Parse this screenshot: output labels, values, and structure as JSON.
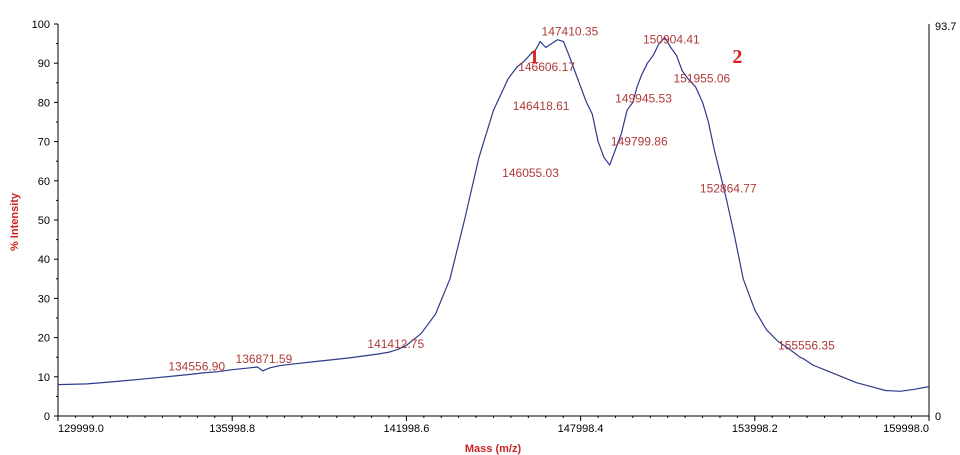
{
  "chart_data": {
    "type": "line",
    "xlabel": "Mass (m/z)",
    "ylabel": "% Intensity",
    "xlim": [
      129999.0,
      159998.0
    ],
    "ylim": [
      0,
      100
    ],
    "x_tick_labels": [
      "129999.0",
      "135998.8",
      "141998.6",
      "147998.4",
      "153998.2",
      "159998.0"
    ],
    "x_tick_values": [
      129999.0,
      135998.8,
      141998.6,
      147998.4,
      153998.2,
      159998.0
    ],
    "y_tick_labels": [
      "0",
      "10",
      "20",
      "30",
      "40",
      "50",
      "60",
      "70",
      "80",
      "90",
      "100"
    ],
    "y_tick_values": [
      0,
      10,
      20,
      30,
      40,
      50,
      60,
      70,
      80,
      90,
      100
    ],
    "right_axis_labels": {
      "top": "93.7",
      "bottom": "0"
    },
    "peak_markers": [
      {
        "text": "1",
        "x": 146400,
        "y": 90
      },
      {
        "text": "2",
        "x": 153400,
        "y": 90
      }
    ],
    "series_color": "#2e3a8c",
    "series": [
      {
        "x": [
          129999,
          131000,
          132000,
          133000,
          134000,
          134557,
          135000,
          135500,
          136000,
          136500,
          136871,
          137050,
          137300,
          137600,
          138000,
          139000,
          140000,
          141000,
          141413,
          141700,
          142000,
          142500,
          143000,
          143500,
          144000,
          144500,
          145000,
          145500,
          145800,
          146055,
          146300,
          146418,
          146607,
          146800,
          147000,
          147200,
          147410,
          147600,
          147800,
          148000,
          148200,
          148400,
          148600,
          148800,
          149000,
          149200,
          149400,
          149600,
          149800,
          149946,
          150100,
          150300,
          150500,
          150700,
          150904,
          151100,
          151300,
          151500,
          151700,
          151955,
          152200,
          152400,
          152600,
          152865,
          153000,
          153300,
          153600,
          154000,
          154400,
          154800,
          155200,
          155556,
          155700,
          156000,
          156500,
          157000,
          157500,
          158000,
          158500,
          159000,
          159500,
          159998
        ],
        "y": [
          8,
          8.2,
          8.8,
          9.5,
          10.2,
          10.6,
          11,
          11.3,
          11.8,
          12.2,
          12.5,
          11.5,
          12.3,
          12.8,
          13.2,
          14,
          14.8,
          15.8,
          16.3,
          17,
          18,
          21,
          26,
          35,
          50,
          66,
          78,
          86,
          89,
          90.5,
          92.5,
          93,
          95.5,
          94,
          95,
          96,
          95.5,
          92,
          88,
          84,
          80,
          77,
          70,
          66,
          64,
          68,
          72,
          78,
          80,
          84,
          87,
          90,
          92,
          95,
          96.5,
          94,
          92,
          88,
          86,
          84,
          80,
          75,
          68,
          60,
          56,
          46,
          35,
          27,
          22,
          19,
          17,
          15,
          14.5,
          13,
          11.5,
          10,
          8.5,
          7.5,
          6.5,
          6.3,
          6.8,
          7.5
        ]
      }
    ],
    "peak_labels": [
      {
        "text": "134556.90",
        "x": 134557,
        "y": 10.6
      },
      {
        "text": "136871.59",
        "x": 136871,
        "y": 12.5
      },
      {
        "text": "141412.75",
        "x": 141413,
        "y": 16.3
      },
      {
        "text": "146055.03",
        "x": 146055,
        "y": 60
      },
      {
        "text": "146418.61",
        "x": 146418,
        "y": 77
      },
      {
        "text": "146606.17",
        "x": 146607,
        "y": 87
      },
      {
        "text": "147410.35",
        "x": 147410,
        "y": 96
      },
      {
        "text": "149799.86",
        "x": 149800,
        "y": 68
      },
      {
        "text": "149945.53",
        "x": 149946,
        "y": 79
      },
      {
        "text": "150904.41",
        "x": 150904,
        "y": 94
      },
      {
        "text": "151955.06",
        "x": 151955,
        "y": 84
      },
      {
        "text": "152864.77",
        "x": 152865,
        "y": 56
      },
      {
        "text": "155556.35",
        "x": 155556,
        "y": 16
      }
    ]
  }
}
